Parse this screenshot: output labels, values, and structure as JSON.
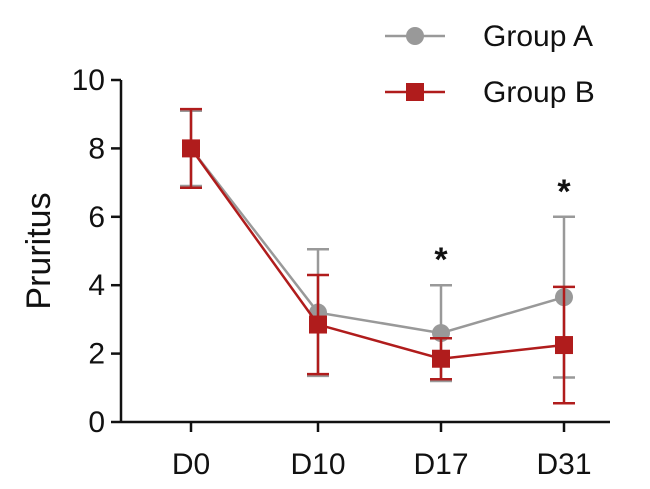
{
  "chart_data": {
    "type": "line",
    "ylabel": "Pruritus",
    "xlabel": "",
    "categories": [
      "D0",
      "D10",
      "D17",
      "D31"
    ],
    "ylim": [
      0,
      10
    ],
    "yticks": [
      0,
      2,
      4,
      6,
      8,
      10
    ],
    "grid": false,
    "legend_position": "top-right",
    "series": [
      {
        "name": "Group A",
        "marker": "circle",
        "color": "#999999",
        "values": [
          8.0,
          3.2,
          2.6,
          3.65
        ],
        "error": [
          1.1,
          1.85,
          1.4,
          2.35
        ]
      },
      {
        "name": "Group B",
        "marker": "square",
        "color": "#b01c1c",
        "values": [
          8.0,
          2.85,
          1.85,
          2.25
        ],
        "error": [
          1.15,
          1.45,
          0.6,
          1.7
        ]
      }
    ],
    "annotations": [
      {
        "category": "D17",
        "text": "*"
      },
      {
        "category": "D31",
        "text": "*"
      }
    ]
  }
}
